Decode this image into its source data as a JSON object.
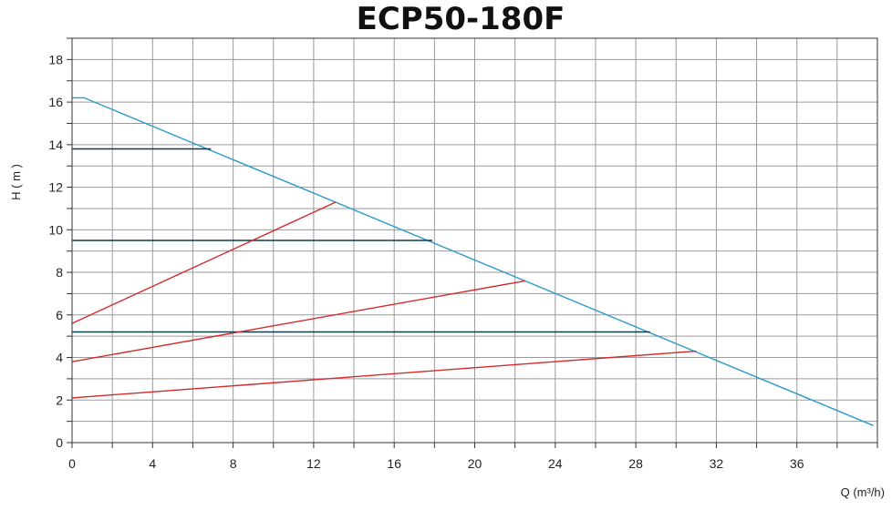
{
  "chart_data": {
    "type": "line",
    "title": "ECP50-180F",
    "xlabel": "Q (m³/h)",
    "ylabel": "H  ( m )",
    "xlim": [
      0,
      40
    ],
    "ylim": [
      0,
      19
    ],
    "x_grid_step": 2,
    "y_grid_step": 1,
    "x_ticks": [
      0,
      4,
      8,
      12,
      16,
      20,
      24,
      28,
      32,
      36
    ],
    "y_ticks": [
      0,
      2,
      4,
      6,
      8,
      10,
      12,
      14,
      16,
      18
    ],
    "grid": true,
    "series": [
      {
        "color": "#2b9ac8",
        "points": [
          [
            0,
            16.2
          ],
          [
            0.6,
            16.2
          ],
          [
            39.8,
            0.8
          ]
        ]
      },
      {
        "color": "#0d3b4a",
        "points": [
          [
            0,
            13.8
          ],
          [
            6.9,
            13.8
          ]
        ]
      },
      {
        "color": "#0d3b4a",
        "points": [
          [
            0,
            9.5
          ],
          [
            17.9,
            9.5
          ]
        ]
      },
      {
        "color": "#0d3b4a",
        "points": [
          [
            0,
            5.2
          ],
          [
            28.7,
            5.2
          ]
        ]
      },
      {
        "color": "#d42a2a",
        "points": [
          [
            0,
            5.6
          ],
          [
            13.1,
            11.3
          ]
        ]
      },
      {
        "color": "#d42a2a",
        "points": [
          [
            0,
            3.8
          ],
          [
            22.5,
            7.6
          ]
        ]
      },
      {
        "color": "#d42a2a",
        "points": [
          [
            0,
            2.1
          ],
          [
            31.0,
            4.3
          ]
        ]
      }
    ]
  }
}
